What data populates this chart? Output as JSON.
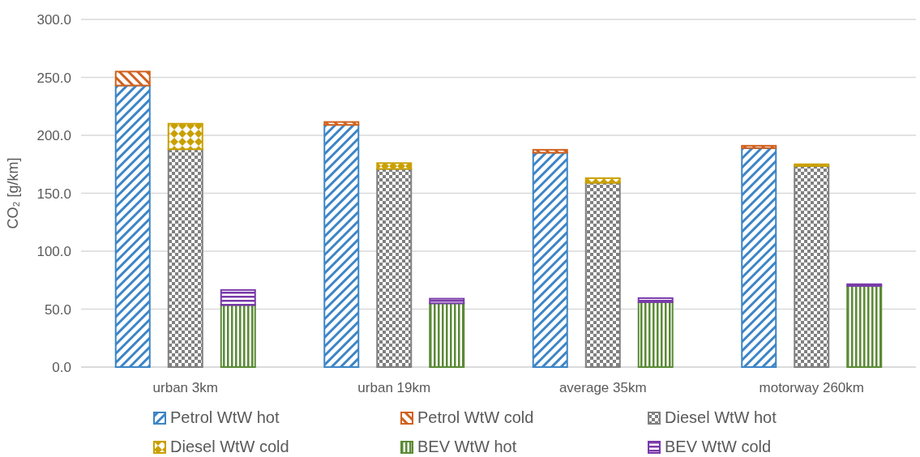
{
  "chart_data": {
    "type": "bar",
    "stacked": true,
    "ylabel": "CO₂ [g/km]",
    "categories": [
      null,
      "urban 3km",
      null,
      null,
      "urban 19km",
      null,
      null,
      "average 35km",
      null,
      null,
      "motorway 260km",
      null
    ],
    "series": [
      {
        "name": "Petrol WtW hot",
        "color": "#3d85c6",
        "values": [
          243,
          null,
          null,
          209,
          null,
          null,
          185,
          null,
          null,
          189,
          null,
          null
        ]
      },
      {
        "name": "Petrol WtW cold",
        "color": "#d0621e",
        "values": [
          12,
          null,
          null,
          2.5,
          null,
          null,
          2.5,
          null,
          null,
          2,
          null,
          null
        ]
      },
      {
        "name": "Diesel WtW hot",
        "color": "#808080",
        "values": [
          null,
          188,
          null,
          null,
          171,
          null,
          null,
          159,
          null,
          null,
          173.5,
          null
        ]
      },
      {
        "name": "Diesel WtW cold",
        "color": "#c9a000",
        "values": [
          null,
          22,
          null,
          null,
          5,
          null,
          null,
          4,
          null,
          null,
          1.5,
          null
        ]
      },
      {
        "name": "BEV WtW hot",
        "color": "#5a8a35",
        "values": [
          null,
          null,
          53.5,
          null,
          null,
          55,
          null,
          null,
          56,
          null,
          null,
          70
        ]
      },
      {
        "name": "BEV WtW cold",
        "color": "#7a3aaa",
        "values": [
          null,
          null,
          13,
          null,
          null,
          4,
          null,
          null,
          3.5,
          null,
          null,
          1.5
        ]
      }
    ],
    "ylim": [
      0,
      300
    ],
    "yticks": [
      {
        "value": 0,
        "label": "0.0"
      },
      {
        "value": 50,
        "label": "50.0"
      },
      {
        "value": 100,
        "label": "100.0"
      },
      {
        "value": 150,
        "label": "150.0"
      },
      {
        "value": 200,
        "label": "200.0"
      },
      {
        "value": 250,
        "label": "250.0"
      },
      {
        "value": 300,
        "label": "300.0"
      }
    ],
    "grid": "y",
    "legend": "bottom"
  }
}
